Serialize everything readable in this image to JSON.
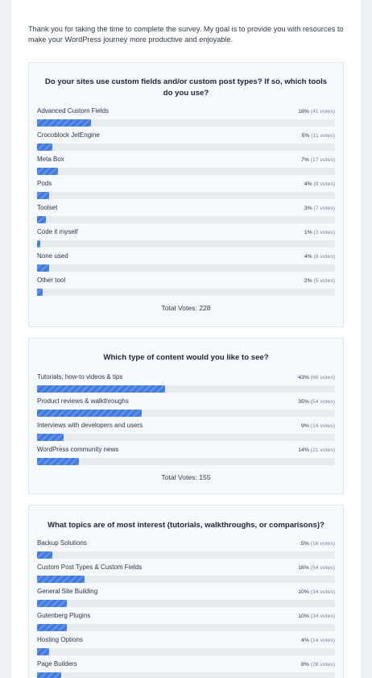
{
  "intro": "Thank you for taking the time to complete the survey. My goal is to provide you with resources to make your WordPress journey more productive and enjoyable.",
  "colors": {
    "bar_fill": "#3d78e0",
    "bar_track": "#e8ebf0",
    "card_bg": "#f6f9fd"
  },
  "polls": [
    {
      "title": "Do your sites use custom fields and/or custom post types? If so, which tools do you use?",
      "total": "Total Votes: 228",
      "options": [
        {
          "label": "Advanced Custom Fields",
          "pct": "18%",
          "votes": "(41 votes)",
          "value": 18
        },
        {
          "label": "Crocoblock JetEngine",
          "pct": "5%",
          "votes": "(11 votes)",
          "value": 5
        },
        {
          "label": "Meta Box",
          "pct": "7%",
          "votes": "(17 votes)",
          "value": 7
        },
        {
          "label": "Pods",
          "pct": "4%",
          "votes": "(8 votes)",
          "value": 4
        },
        {
          "label": "Toolset",
          "pct": "3%",
          "votes": "(7 votes)",
          "value": 3
        },
        {
          "label": "Code it myself",
          "pct": "1%",
          "votes": "(3 votes)",
          "value": 1
        },
        {
          "label": "None used",
          "pct": "4%",
          "votes": "(8 votes)",
          "value": 4
        },
        {
          "label": "Other tool",
          "pct": "2%",
          "votes": "(5 votes)",
          "value": 2
        }
      ]
    },
    {
      "title": "Which type of content would you like to see?",
      "total": "Total Votes: 155",
      "options": [
        {
          "label": "Tutorials, how-to videos & tips",
          "pct": "43%",
          "votes": "(66 votes)",
          "value": 43
        },
        {
          "label": "Product reviews & walkthroughs",
          "pct": "35%",
          "votes": "(54 votes)",
          "value": 35
        },
        {
          "label": "Interviews with developers and users",
          "pct": "9%",
          "votes": "(14 votes)",
          "value": 9
        },
        {
          "label": "WordPress community news",
          "pct": "14%",
          "votes": "(21 votes)",
          "value": 14
        }
      ]
    },
    {
      "title": "What topics are of most interest (tutorials, walkthroughs, or comparisons)?",
      "total": "",
      "options": [
        {
          "label": "Backup Solutions",
          "pct": "5%",
          "votes": "(16 votes)",
          "value": 5
        },
        {
          "label": "Custom Post Types & Custom Fields",
          "pct": "16%",
          "votes": "(54 votes)",
          "value": 16
        },
        {
          "label": "General Site Building",
          "pct": "10%",
          "votes": "(34 votes)",
          "value": 10
        },
        {
          "label": "Gutenberg Plugins",
          "pct": "10%",
          "votes": "(34 votes)",
          "value": 10
        },
        {
          "label": "Hosting Options",
          "pct": "4%",
          "votes": "(14 votes)",
          "value": 4
        },
        {
          "label": "Page Builders",
          "pct": "8%",
          "votes": "(28 votes)",
          "value": 8
        }
      ]
    }
  ]
}
